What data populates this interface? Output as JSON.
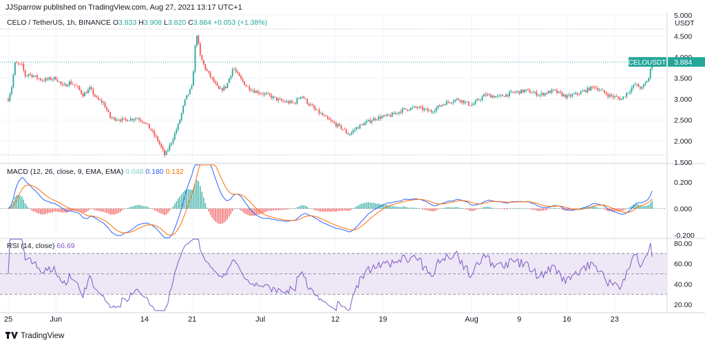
{
  "header": {
    "publisher": "JJSparrow published on TradingView.com, Aug 27, 2021 13:17 UTC+1"
  },
  "footer": {
    "brand": "TradingView",
    "logo_icon": "tradingview-logo-icon"
  },
  "colors": {
    "up": "#26a69a",
    "down": "#ef5350",
    "macd": "#2962ff",
    "signal": "#ff6d00",
    "rsi": "#7e57c2",
    "rsi_band": "#ede7f6",
    "price_tag": "#26a69a",
    "last_price_line": "#26a69a"
  },
  "chart_data": [
    {
      "type": "candlestick",
      "symbol_label": "CELO / TetherUS, 1h, BINANCE",
      "ohlc": {
        "o_label": "O",
        "o": "3.833",
        "h_label": "H",
        "h": "3.908",
        "l_label": "L",
        "l": "3.820",
        "c_label": "C",
        "c": "3.884",
        "change": "+0.053 (+1.38%)"
      },
      "currency": "USDT",
      "price_tag": {
        "symbol": "CELOUSDT",
        "value": "3.884"
      },
      "y_ticks": [
        "5.000",
        "4.500",
        "4.000",
        "3.500",
        "3.000",
        "2.500",
        "2.000",
        "1.500"
      ],
      "y_tick_values": [
        5.0,
        4.5,
        4.0,
        3.5,
        3.0,
        2.5,
        2.0,
        1.5
      ],
      "ylim": [
        1.48,
        5.0
      ],
      "x_ticks": [
        "25",
        "Jun",
        "14",
        "21",
        "Jul",
        "12",
        "19",
        "Aug",
        "9",
        "16",
        "23"
      ],
      "x_tick_days": [
        0,
        7,
        20,
        27,
        37,
        48,
        55,
        68,
        75,
        82,
        89
      ],
      "days_total": 96,
      "high_line": 4.67,
      "low_line": 1.67,
      "path": [
        [
          0,
          3.0
        ],
        [
          0.5,
          3.3
        ],
        [
          1,
          3.85
        ],
        [
          2,
          3.8
        ],
        [
          2.5,
          3.55
        ],
        [
          3,
          3.6
        ],
        [
          5,
          3.45
        ],
        [
          7,
          3.5
        ],
        [
          8,
          3.3
        ],
        [
          9,
          3.4
        ],
        [
          10,
          3.3
        ],
        [
          11,
          3.1
        ],
        [
          12,
          3.25
        ],
        [
          13,
          3.0
        ],
        [
          14,
          2.9
        ],
        [
          15,
          2.55
        ],
        [
          17,
          2.5
        ],
        [
          19,
          2.55
        ],
        [
          20,
          2.45
        ],
        [
          21,
          2.25
        ],
        [
          22,
          2.0
        ],
        [
          23,
          1.65
        ],
        [
          24,
          2.0
        ],
        [
          25,
          2.4
        ],
        [
          26,
          3.0
        ],
        [
          27,
          3.3
        ],
        [
          27.6,
          4.62
        ],
        [
          28.2,
          4.0
        ],
        [
          29,
          3.7
        ],
        [
          30,
          3.45
        ],
        [
          31,
          3.2
        ],
        [
          32,
          3.3
        ],
        [
          33,
          3.75
        ],
        [
          34,
          3.5
        ],
        [
          35,
          3.3
        ],
        [
          36,
          3.2
        ],
        [
          37,
          3.15
        ],
        [
          38,
          3.1
        ],
        [
          40,
          2.95
        ],
        [
          42,
          2.9
        ],
        [
          43,
          3.1
        ],
        [
          44,
          2.9
        ],
        [
          45,
          2.75
        ],
        [
          47,
          2.5
        ],
        [
          49,
          2.3
        ],
        [
          50,
          2.15
        ],
        [
          51,
          2.3
        ],
        [
          52,
          2.4
        ],
        [
          54,
          2.55
        ],
        [
          56,
          2.6
        ],
        [
          58,
          2.75
        ],
        [
          60,
          2.8
        ],
        [
          62,
          2.7
        ],
        [
          64,
          2.9
        ],
        [
          66,
          3.0
        ],
        [
          68,
          2.85
        ],
        [
          70,
          3.1
        ],
        [
          72,
          3.05
        ],
        [
          74,
          3.15
        ],
        [
          76,
          3.2
        ],
        [
          78,
          3.1
        ],
        [
          80,
          3.2
        ],
        [
          82,
          3.05
        ],
        [
          84,
          3.15
        ],
        [
          86,
          3.3
        ],
        [
          88,
          3.1
        ],
        [
          90,
          3.0
        ],
        [
          92,
          3.35
        ],
        [
          93,
          3.25
        ],
        [
          94,
          3.5
        ],
        [
          94.5,
          3.884
        ]
      ]
    },
    {
      "type": "line",
      "indicator": "macd",
      "label": "MACD (12, 26, close, 9, EMA, EMA)",
      "values": [
        "0.048",
        "0.180",
        "0.132"
      ],
      "y_ticks": [
        "0.200",
        "0.000",
        "-0.200"
      ],
      "y_tick_values": [
        0.2,
        0.0,
        -0.2
      ],
      "ylim": [
        -0.22,
        0.33
      ]
    },
    {
      "type": "line",
      "indicator": "rsi",
      "label": "RSI (14, close)",
      "value": "66.69",
      "y_ticks": [
        "80.00",
        "60.00",
        "40.00",
        "20.00"
      ],
      "y_tick_values": [
        80,
        60,
        40,
        20
      ],
      "ylim": [
        14,
        84
      ],
      "bands": [
        30,
        50,
        70
      ]
    }
  ]
}
